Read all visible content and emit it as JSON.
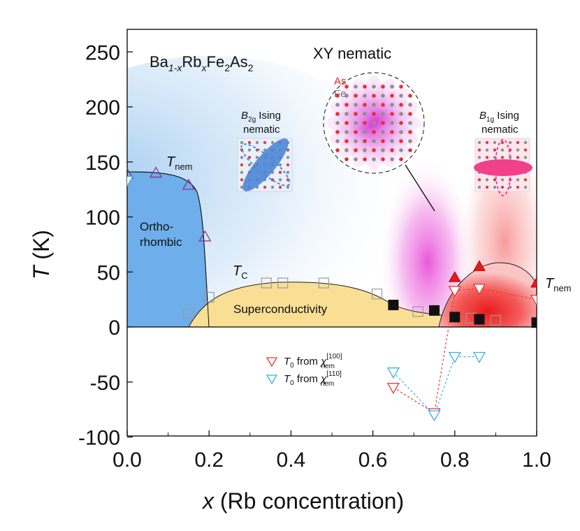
{
  "chart_data": {
    "type": "scatter",
    "title": "",
    "compound": {
      "base": "Ba",
      "s1": "1-x",
      "rb": "Rb",
      "s2": "x",
      "fe": "Fe",
      "s3": "2",
      "as": "As",
      "s4": "2"
    },
    "xlabel": {
      "var": "x",
      "rest": " (Rb concentration)"
    },
    "ylabel": {
      "var": "T",
      "rest": " (K)"
    },
    "xlim": [
      0.0,
      1.0
    ],
    "ylim": [
      -100,
      270
    ],
    "x_ticks": [
      "0.0",
      "0.2",
      "0.4",
      "0.6",
      "0.8",
      "1.0"
    ],
    "y_ticks": [
      "250",
      "200",
      "150",
      "100",
      "50",
      "0",
      "-50",
      "-100"
    ],
    "regions": {
      "orthorhombic": {
        "line1": "Ortho-",
        "line2": "rhombic"
      },
      "superconductivity": "Superconductivity",
      "xy_nematic": "XY nematic",
      "b2g": {
        "sym": "B",
        "sub": "2g",
        "rest": " Ising",
        "line2": "nematic"
      },
      "b1g": {
        "sym": "B",
        "sub": "1g",
        "rest": " Ising",
        "line2": "nematic"
      },
      "as_label": "As",
      "fe_label": "Fe"
    },
    "annotations": {
      "tnem_left": {
        "main": "T",
        "sub": "nem"
      },
      "tc": {
        "main": "T",
        "sub": "C"
      },
      "tnem_right": {
        "main": "T",
        "sub": "nem"
      }
    },
    "legend": {
      "placement": "lower-center",
      "items": [
        {
          "t": "T",
          "s": "0",
          "from": " from ",
          "chi": "χ",
          "sub": "nem",
          "sup": "[100]",
          "color": "#e8382c"
        },
        {
          "t": "T",
          "s": "0",
          "from": " from ",
          "chi": "χ",
          "sub": "nem",
          "sup": "[110]",
          "color": "#35b1e6"
        }
      ]
    },
    "colors": {
      "orthorhombic": "#6eaeea",
      "superconductivity": "#f9df94",
      "xy_nematic": "#e45cdc",
      "red_nematic": "#ef2a2a",
      "tnem_left_marker": "#8a2a8a",
      "tnem_right_marker": "#e51a1a",
      "tc_marker": "#9a9a9a"
    },
    "series": [
      {
        "name": "T_nem (orthorhombic)",
        "marker": "triangle-up-open",
        "x": [
          0.0,
          0.07,
          0.15,
          0.19
        ],
        "y": [
          139,
          140,
          129,
          82
        ]
      },
      {
        "name": "T_nem (edge, blue)",
        "marker": "triangle-down-open-blue",
        "x": [
          0.0
        ],
        "y": [
          133
        ]
      },
      {
        "name": "T_C (open squares)",
        "marker": "square-open",
        "x": [
          0.15,
          0.2,
          0.34,
          0.38,
          0.48,
          0.61,
          0.71,
          0.84,
          0.9
        ],
        "y": [
          12,
          27,
          40,
          40,
          40,
          30,
          14,
          8,
          6
        ]
      },
      {
        "name": "T_C (filled squares)",
        "marker": "square-filled",
        "x": [
          0.65,
          0.75,
          0.8,
          0.86,
          1.0
        ],
        "y": [
          20,
          15,
          9,
          7,
          4
        ]
      },
      {
        "name": "T_nem (red)",
        "marker": "triangle-up-filled",
        "x": [
          0.8,
          0.86,
          1.0
        ],
        "y": [
          45,
          55,
          40
        ]
      },
      {
        "name": "T_0 from chi_nem[100] (positive)",
        "marker": "triangle-down-open-red",
        "x": [
          0.8,
          0.86,
          1.0
        ],
        "y": [
          33,
          35,
          25
        ]
      },
      {
        "name": "T_0 from chi_nem[100]",
        "marker": "triangle-down-open-red",
        "line": "dashed",
        "x": [
          0.65,
          0.75,
          0.8
        ],
        "y": [
          -55,
          -78,
          33
        ]
      },
      {
        "name": "T_0 from chi_nem[110]",
        "marker": "triangle-down-open-blue",
        "line": "dashed",
        "x": [
          0.65,
          0.75,
          0.8,
          0.86
        ],
        "y": [
          -41,
          -80,
          -27,
          -27
        ]
      },
      {
        "name": "T_0 from chi_nem[100] (upper branch)",
        "marker": "none",
        "line": "dashed",
        "x": [
          0.8,
          0.86,
          1.0
        ],
        "y": [
          33,
          35,
          25
        ]
      }
    ]
  }
}
